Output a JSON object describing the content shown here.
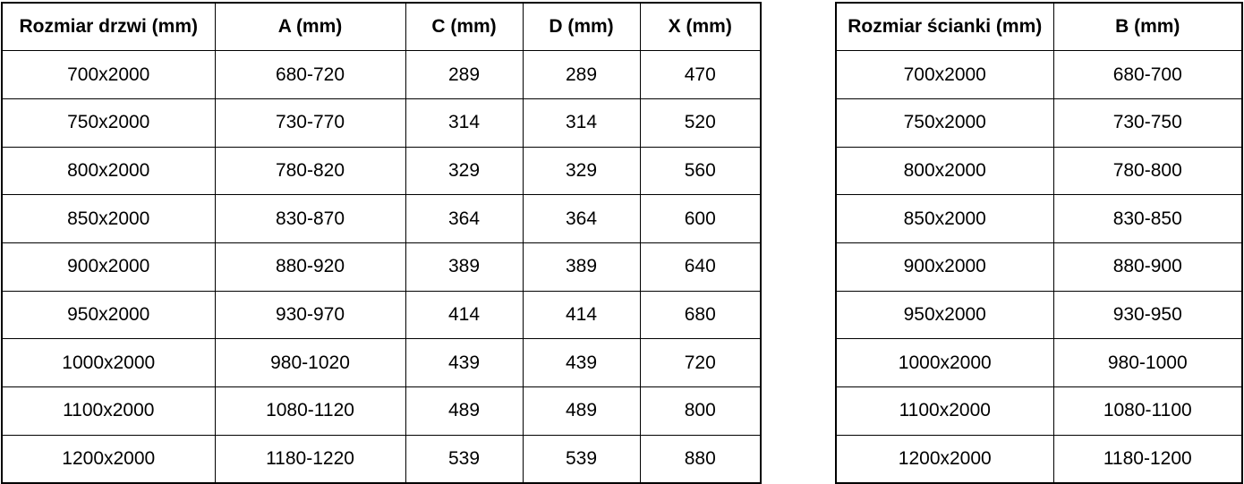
{
  "page": {
    "background": "#ffffff",
    "border_color": "#000000",
    "text_color": "#000000"
  },
  "tables": [
    {
      "id": "door-dimensions",
      "headers": [
        "Rozmiar drzwi (mm)",
        "A (mm)",
        "C (mm)",
        "D (mm)",
        "X (mm)"
      ],
      "rows": [
        [
          "700x2000",
          "680-720",
          "289",
          "289",
          "470"
        ],
        [
          "750x2000",
          "730-770",
          "314",
          "314",
          "520"
        ],
        [
          "800x2000",
          "780-820",
          "329",
          "329",
          "560"
        ],
        [
          "850x2000",
          "830-870",
          "364",
          "364",
          "600"
        ],
        [
          "900x2000",
          "880-920",
          "389",
          "389",
          "640"
        ],
        [
          "950x2000",
          "930-970",
          "414",
          "414",
          "680"
        ],
        [
          "1000x2000",
          "980-1020",
          "439",
          "439",
          "720"
        ],
        [
          "1100x2000",
          "1080-1120",
          "489",
          "489",
          "800"
        ],
        [
          "1200x2000",
          "1180-1220",
          "539",
          "539",
          "880"
        ]
      ]
    },
    {
      "id": "wall-dimensions",
      "headers": [
        "Rozmiar ścianki (mm)",
        "B (mm)"
      ],
      "rows": [
        [
          "700x2000",
          "680-700"
        ],
        [
          "750x2000",
          "730-750"
        ],
        [
          "800x2000",
          "780-800"
        ],
        [
          "850x2000",
          "830-850"
        ],
        [
          "900x2000",
          "880-900"
        ],
        [
          "950x2000",
          "930-950"
        ],
        [
          "1000x2000",
          "980-1000"
        ],
        [
          "1100x2000",
          "1080-1100"
        ],
        [
          "1200x2000",
          "1180-1200"
        ]
      ]
    }
  ]
}
